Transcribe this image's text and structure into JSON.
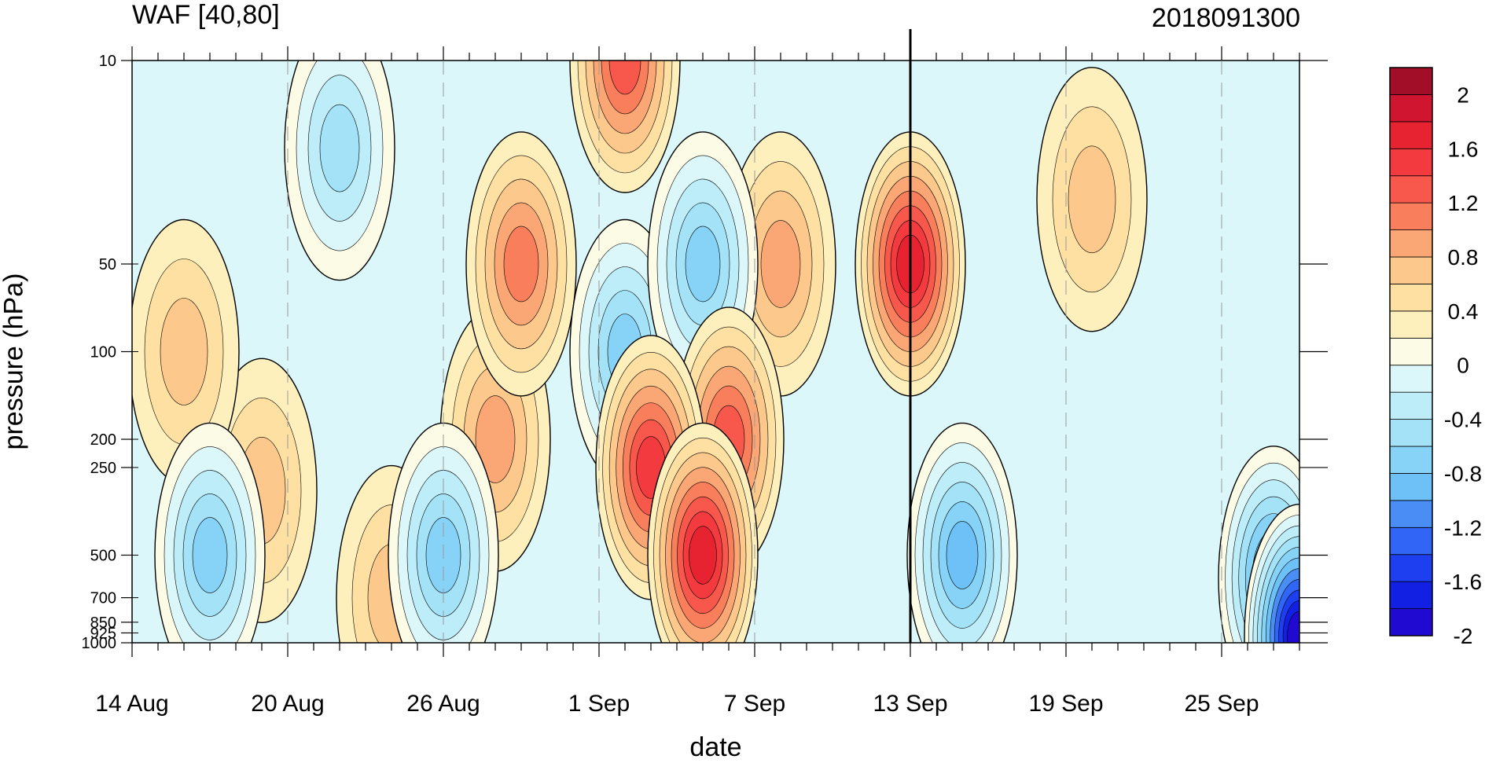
{
  "chart_data": {
    "type": "heatmap",
    "title": "WAF [40,80]",
    "subtitle": "2018091300",
    "xlabel": "date",
    "ylabel": "pressure (hPa)",
    "x_ticks": [
      "14 Aug",
      "20 Aug",
      "26 Aug",
      "1 Sep",
      "7 Sep",
      "13 Sep",
      "19 Sep",
      "25 Sep"
    ],
    "x_start": "2018-08-14",
    "x_end": "2018-09-28",
    "marked_date": "2018-09-13",
    "y_ticks": [
      "10",
      "50",
      "100",
      "200",
      "250",
      "500",
      "700",
      "850",
      "925",
      "1000"
    ],
    "y_scale": "log",
    "ylim": [
      1000,
      10
    ],
    "colorbar": {
      "labels": [
        "2",
        "1.6",
        "1.2",
        "0.8",
        "0.4",
        "0",
        "-0.4",
        "-0.8",
        "-1.2",
        "-1.6",
        "-2"
      ],
      "range": [
        -2.2,
        2.2
      ],
      "step": 0.2,
      "colors": [
        "#2009d1",
        "#1220e3",
        "#1d3ff0",
        "#3065f5",
        "#4a8df5",
        "#6dc1f6",
        "#86d3f7",
        "#a3e2f7",
        "#bdedf8",
        "#dcf7fa",
        "#fcfbe6",
        "#fef0bd",
        "#fde0a2",
        "#fcc88c",
        "#fba775",
        "#f97f5c",
        "#f8574b",
        "#f33a3e",
        "#e72332",
        "#cf1530",
        "#a20d28"
      ]
    },
    "series": [
      {
        "date": "2018-09-13",
        "pressure": 50,
        "value": 1.5
      },
      {
        "date": "2018-09-02",
        "pressure": 10,
        "value": 1.1
      },
      {
        "date": "2018-09-03",
        "pressure": 250,
        "value": 1.3
      },
      {
        "date": "2018-09-05",
        "pressure": 500,
        "value": 1.5
      },
      {
        "date": "2018-09-06",
        "pressure": 200,
        "value": 1.2
      },
      {
        "date": "2018-08-29",
        "pressure": 50,
        "value": 0.9
      },
      {
        "date": "2018-08-28",
        "pressure": 200,
        "value": 0.7
      },
      {
        "date": "2018-09-08",
        "pressure": 50,
        "value": 0.8
      },
      {
        "date": "2018-09-20",
        "pressure": 30,
        "value": 0.6
      },
      {
        "date": "2018-08-16",
        "pressure": 100,
        "value": 0.6
      },
      {
        "date": "2018-08-19",
        "pressure": 300,
        "value": 0.5
      },
      {
        "date": "2018-08-24",
        "pressure": 700,
        "value": 0.5
      },
      {
        "date": "2018-09-02",
        "pressure": 100,
        "value": -0.9
      },
      {
        "date": "2018-09-05",
        "pressure": 50,
        "value": -0.9
      },
      {
        "date": "2018-08-17",
        "pressure": 500,
        "value": -0.9
      },
      {
        "date": "2018-08-26",
        "pressure": 500,
        "value": -1.0
      },
      {
        "date": "2018-09-15",
        "pressure": 500,
        "value": -1.2
      },
      {
        "date": "2018-08-22",
        "pressure": 20,
        "value": -0.8
      },
      {
        "date": "2018-09-28",
        "pressure": 950,
        "value": -2.1
      },
      {
        "date": "2018-09-27",
        "pressure": 600,
        "value": -1.4
      }
    ]
  }
}
